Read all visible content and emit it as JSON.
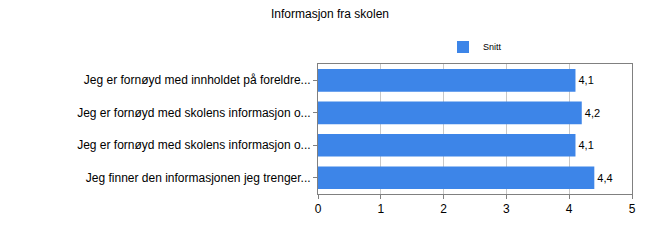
{
  "chart_data": {
    "type": "bar",
    "orientation": "horizontal",
    "title": "Informasjon fra skolen",
    "categories": [
      "Jeg er fornøyd med innholdet på foreldre...",
      "Jeg er fornøyd med skolens informasjon o...",
      "Jeg er fornøyd med skolens informasjon o...",
      "Jeg finner den informasjonen jeg trenger..."
    ],
    "series": [
      {
        "name": "Snitt",
        "color": "#3d85e8",
        "values": [
          4.1,
          4.2,
          4.1,
          4.4
        ],
        "value_labels": [
          "4,1",
          "4,2",
          "4,1",
          "4,4"
        ]
      }
    ],
    "xlim": [
      0,
      5
    ],
    "xticks": [
      0,
      1,
      2,
      3,
      4,
      5
    ],
    "grid": true,
    "legend": "top",
    "data_labels": true
  }
}
